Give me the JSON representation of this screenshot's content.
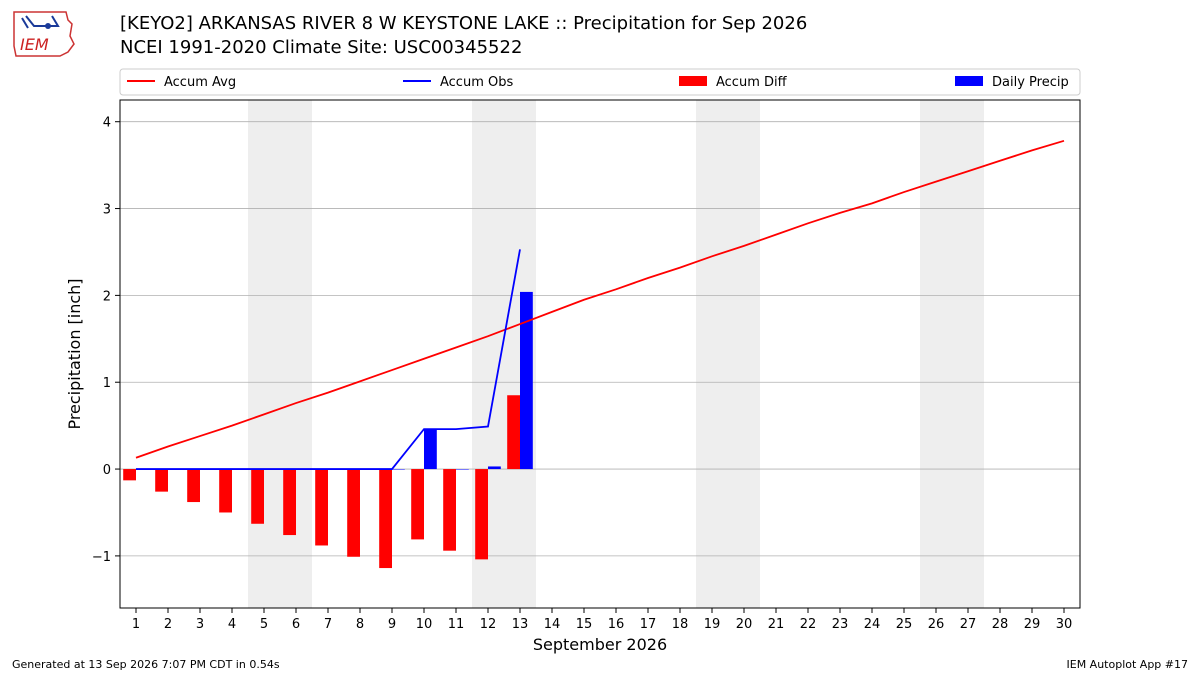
{
  "header": {
    "title": "[KEYO2] ARKANSAS RIVER 8 W KEYSTONE LAKE :: Precipitation for Sep 2026",
    "subtitle": "NCEI 1991-2020 Climate Site: USC00345522",
    "logo_text": "IEM"
  },
  "footer": {
    "left": "Generated at 13 Sep 2026 7:07 PM CDT in 0.54s",
    "right": "IEM Autoplot App #17"
  },
  "colors": {
    "avg": "#ff0000",
    "obs": "#0000ff",
    "diff": "#ff0000",
    "daily": "#0000ff",
    "weekend_band": "#eeeeee",
    "grid": "#b0b0b0"
  },
  "chart_data": {
    "type": "bar",
    "xlabel": "September 2026",
    "ylabel": "Precipitation [inch]",
    "xlim": [
      0.5,
      30.5
    ],
    "ylim": [
      -1.6,
      4.25
    ],
    "yticks": [
      -1,
      0,
      1,
      2,
      3,
      4
    ],
    "ytick_labels": [
      "−1",
      "0",
      "1",
      "2",
      "3",
      "4"
    ],
    "x": [
      1,
      2,
      3,
      4,
      5,
      6,
      7,
      8,
      9,
      10,
      11,
      12,
      13,
      14,
      15,
      16,
      17,
      18,
      19,
      20,
      21,
      22,
      23,
      24,
      25,
      26,
      27,
      28,
      29,
      30
    ],
    "grid": "horizontal",
    "legend_position": "top",
    "weekend_bands": [
      [
        4.5,
        6.5
      ],
      [
        11.5,
        13.5
      ],
      [
        18.5,
        20.5
      ],
      [
        25.5,
        27.5
      ]
    ],
    "series": [
      {
        "name": "Accum Avg",
        "kind": "line",
        "x": [
          1,
          2,
          3,
          4,
          5,
          6,
          7,
          8,
          9,
          10,
          11,
          12,
          13,
          14,
          15,
          16,
          17,
          18,
          19,
          20,
          21,
          22,
          23,
          24,
          25,
          26,
          27,
          28,
          29,
          30
        ],
        "values": [
          0.13,
          0.26,
          0.38,
          0.5,
          0.63,
          0.76,
          0.88,
          1.01,
          1.14,
          1.27,
          1.4,
          1.53,
          1.67,
          1.81,
          1.95,
          2.07,
          2.2,
          2.32,
          2.45,
          2.57,
          2.7,
          2.83,
          2.95,
          3.06,
          3.19,
          3.31,
          3.43,
          3.55,
          3.67,
          3.78
        ]
      },
      {
        "name": "Accum Obs",
        "kind": "line",
        "x": [
          1,
          2,
          3,
          4,
          5,
          6,
          7,
          8,
          9,
          10,
          11,
          12,
          13
        ],
        "values": [
          0,
          0,
          0,
          0,
          0,
          0,
          0,
          0,
          0,
          0.46,
          0.46,
          0.49,
          2.53
        ]
      },
      {
        "name": "Accum Diff",
        "kind": "bar",
        "offset": -0.2,
        "x": [
          1,
          2,
          3,
          4,
          5,
          6,
          7,
          8,
          9,
          10,
          11,
          12,
          13
        ],
        "values": [
          -0.13,
          -0.26,
          -0.38,
          -0.5,
          -0.63,
          -0.76,
          -0.88,
          -1.01,
          -1.14,
          -0.81,
          -0.94,
          -1.04,
          0.85
        ]
      },
      {
        "name": "Daily Precip",
        "kind": "bar",
        "offset": 0.2,
        "x": [
          1,
          2,
          3,
          4,
          5,
          6,
          7,
          8,
          9,
          10,
          11,
          12,
          13
        ],
        "values": [
          0,
          0,
          0,
          0,
          0,
          0,
          0,
          0,
          0,
          0.46,
          0,
          0.03,
          2.04
        ]
      }
    ]
  }
}
